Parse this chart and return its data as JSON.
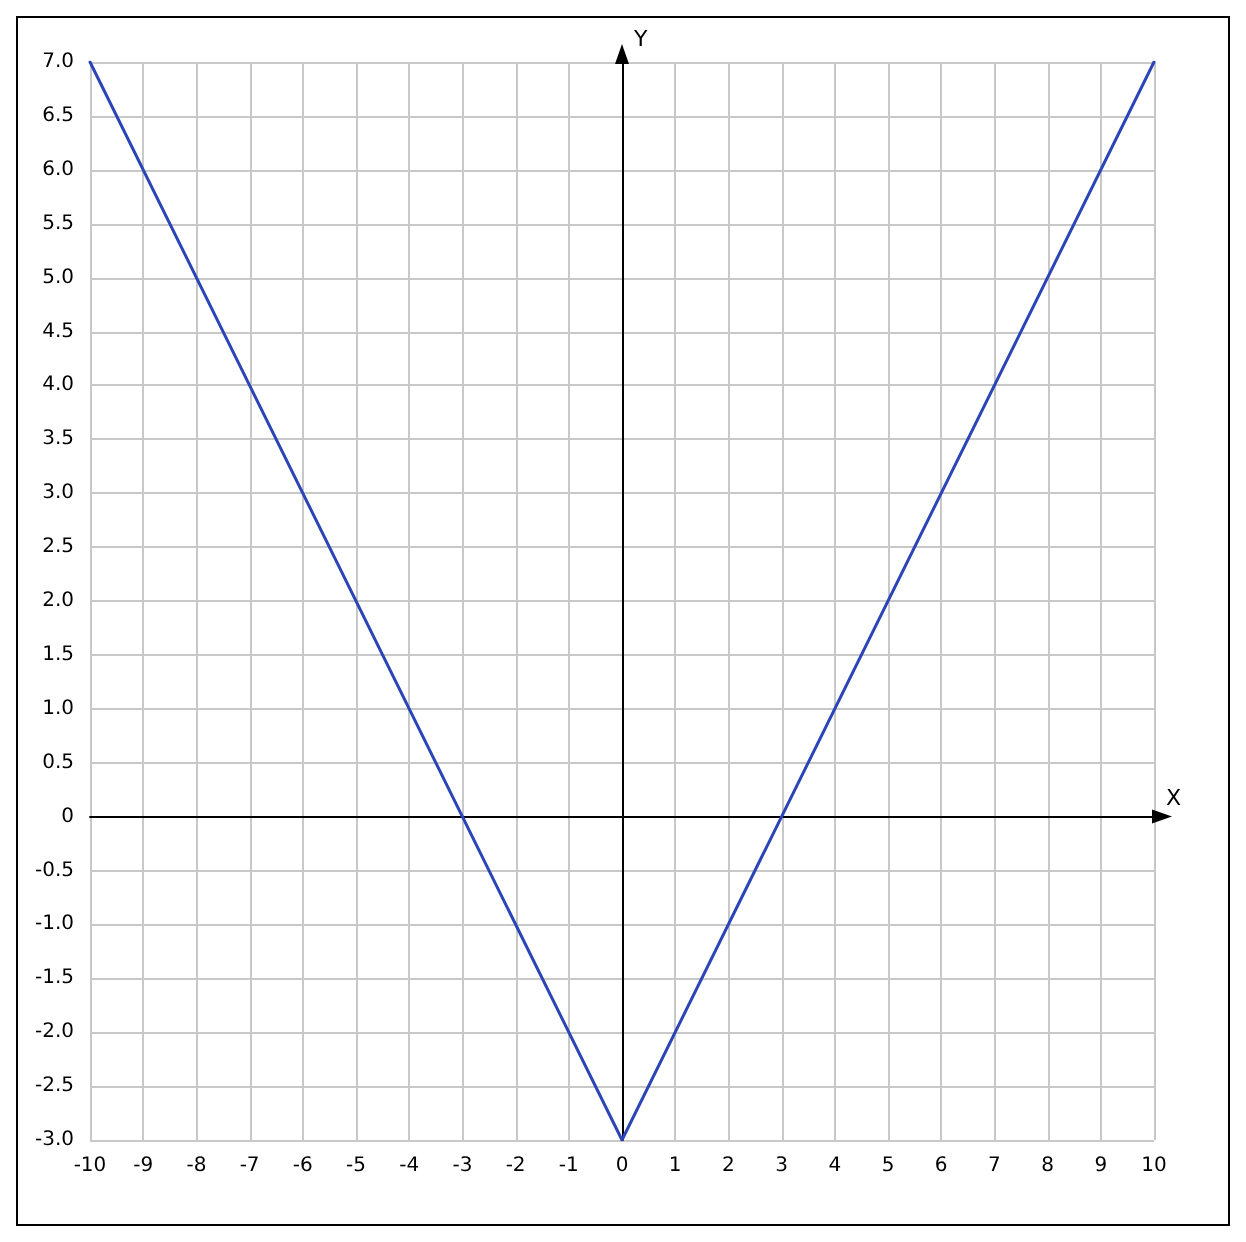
{
  "chart_data": {
    "type": "line",
    "xlabel": "X",
    "ylabel": "Y",
    "x": [
      -10,
      0,
      10
    ],
    "series": [
      {
        "color": "#2b44b8",
        "values": [
          7,
          -3,
          7
        ]
      }
    ],
    "xlim": [
      -10,
      10
    ],
    "xticks": [
      -10,
      -9,
      -8,
      -7,
      -6,
      -5,
      -4,
      -3,
      -2,
      -1,
      0,
      1,
      2,
      3,
      4,
      5,
      6,
      7,
      8,
      9,
      10
    ],
    "ylim": [
      -3,
      7
    ],
    "yticks": [
      {
        "value": -3,
        "label": "-3.0"
      },
      {
        "value": -2.5,
        "label": "-2.5"
      },
      {
        "value": -2,
        "label": "-2.0"
      },
      {
        "value": -1.5,
        "label": "-1.5"
      },
      {
        "value": -1,
        "label": "-1.0"
      },
      {
        "value": -0.5,
        "label": "-0.5"
      },
      {
        "value": 0,
        "label": "0"
      },
      {
        "value": 0.5,
        "label": "0.5"
      },
      {
        "value": 1,
        "label": "1.0"
      },
      {
        "value": 1.5,
        "label": "1.5"
      },
      {
        "value": 2,
        "label": "2.0"
      },
      {
        "value": 2.5,
        "label": "2.5"
      },
      {
        "value": 3,
        "label": "3.0"
      },
      {
        "value": 3.5,
        "label": "3.5"
      },
      {
        "value": 4,
        "label": "4.0"
      },
      {
        "value": 4.5,
        "label": "4.5"
      },
      {
        "value": 5,
        "label": "5.0"
      },
      {
        "value": 5.5,
        "label": "5.5"
      },
      {
        "value": 6,
        "label": "6.0"
      },
      {
        "value": 6.5,
        "label": "6.5"
      },
      {
        "value": 7,
        "label": "7.0"
      }
    ],
    "grid": true,
    "marker": "none",
    "line_style": "solid"
  }
}
